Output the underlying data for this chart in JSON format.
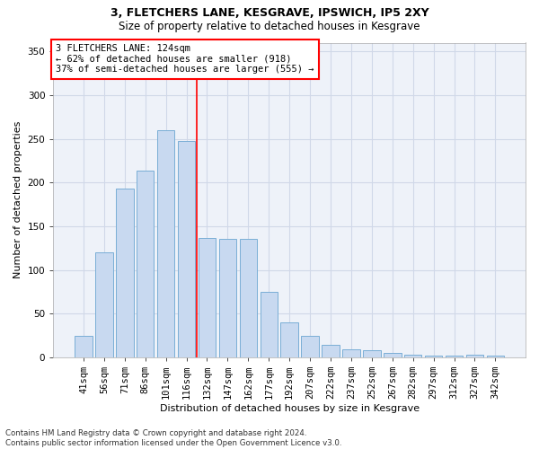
{
  "title1": "3, FLETCHERS LANE, KESGRAVE, IPSWICH, IP5 2XY",
  "title2": "Size of property relative to detached houses in Kesgrave",
  "xlabel": "Distribution of detached houses by size in Kesgrave",
  "ylabel": "Number of detached properties",
  "categories": [
    "41sqm",
    "56sqm",
    "71sqm",
    "86sqm",
    "101sqm",
    "116sqm",
    "132sqm",
    "147sqm",
    "162sqm",
    "177sqm",
    "192sqm",
    "207sqm",
    "222sqm",
    "237sqm",
    "252sqm",
    "267sqm",
    "282sqm",
    "297sqm",
    "312sqm",
    "327sqm",
    "342sqm"
  ],
  "values": [
    25,
    120,
    193,
    214,
    260,
    247,
    137,
    136,
    136,
    75,
    40,
    25,
    14,
    9,
    8,
    5,
    3,
    2,
    2,
    3,
    2
  ],
  "bar_color": "#c8d9f0",
  "bar_edge_color": "#7aaed6",
  "vline_x": 5.5,
  "annotation_text": "3 FLETCHERS LANE: 124sqm\n← 62% of detached houses are smaller (918)\n37% of semi-detached houses are larger (555) →",
  "annotation_box_color": "white",
  "annotation_box_edge": "red",
  "vline_color": "red",
  "grid_color": "#d0d8e8",
  "background_color": "#eef2f9",
  "footer": "Contains HM Land Registry data © Crown copyright and database right 2024.\nContains public sector information licensed under the Open Government Licence v3.0.",
  "ylim": [
    0,
    360
  ],
  "yticks": [
    0,
    50,
    100,
    150,
    200,
    250,
    300,
    350
  ],
  "title1_fontsize": 9,
  "title2_fontsize": 8.5,
  "xlabel_fontsize": 8,
  "ylabel_fontsize": 8,
  "tick_fontsize": 7.5,
  "annotation_fontsize": 7.5
}
